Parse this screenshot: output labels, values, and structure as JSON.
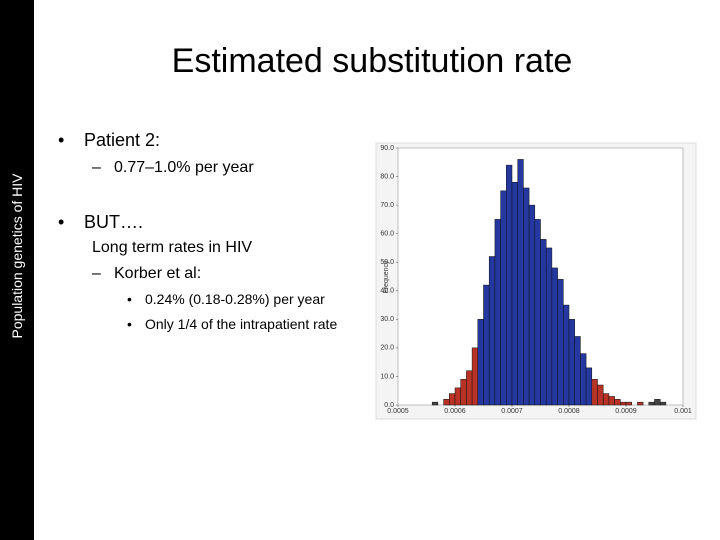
{
  "sidebar": "Population genetics of HIV",
  "title": "Estimated substitution rate",
  "bullets": [
    "Patient 2:",
    "0.77–1.0% per year",
    "BUT….",
    "Long term rates in HIV",
    "Korber et al:",
    "0.24% (0.18-0.28%) per year",
    "Only 1/4 of the intrapatient rate"
  ],
  "chart_data": {
    "type": "histogram",
    "ylabel": "Frequency",
    "bins": [
      0.00056,
      0.00057,
      0.00058,
      0.00059,
      0.0006,
      0.00061,
      0.00062,
      0.00063,
      0.00064,
      0.00065,
      0.00066,
      0.00067,
      0.00068,
      0.00069,
      0.0007,
      0.00071,
      0.00072,
      0.00073,
      0.00074,
      0.00075,
      0.00076,
      0.00077,
      0.00078,
      0.00079,
      0.0008,
      0.00081,
      0.00082,
      0.00083,
      0.00084,
      0.00085,
      0.00086,
      0.00087,
      0.00088,
      0.00089,
      0.0009,
      0.00091,
      0.00092,
      0.00093,
      0.00094,
      0.00095,
      0.00096,
      0.00097
    ],
    "counts": [
      1,
      0,
      2,
      4,
      6,
      9,
      12,
      20,
      30,
      42,
      52,
      65,
      75,
      84,
      78,
      86,
      76,
      70,
      65,
      58,
      55,
      48,
      44,
      35,
      30,
      24,
      18,
      13,
      9,
      7,
      4,
      3,
      2,
      1,
      1,
      0,
      1,
      0,
      1,
      2,
      1
    ],
    "colors": [
      "#444",
      "#b83226",
      "#b83226",
      "#b83226",
      "#b83226",
      "#b83226",
      "#b83226",
      "#b83226",
      "#2438a0",
      "#2438a0",
      "#2438a0",
      "#2438a0",
      "#2438a0",
      "#2438a0",
      "#2438a0",
      "#2438a0",
      "#2438a0",
      "#2438a0",
      "#2438a0",
      "#2438a0",
      "#2438a0",
      "#2438a0",
      "#2438a0",
      "#2438a0",
      "#2438a0",
      "#2438a0",
      "#2438a0",
      "#2438a0",
      "#b83226",
      "#b83226",
      "#b83226",
      "#b83226",
      "#b83226",
      "#b83226",
      "#b83226",
      "#b83226",
      "#b83226",
      "#b83226",
      "#444",
      "#444",
      "#444"
    ],
    "xlim": [
      0.0005,
      0.001
    ],
    "xticks": [
      0.0005,
      0.0006,
      0.0007,
      0.0008,
      0.0009,
      0.001
    ],
    "ylim": [
      0,
      90
    ],
    "yticks": [
      {
        "value": 0,
        "label": "0.0"
      },
      {
        "value": 10,
        "label": "10.0"
      },
      {
        "value": 20,
        "label": "20.0"
      },
      {
        "value": 30,
        "label": "30.0"
      },
      {
        "value": 40,
        "label": "40.0"
      },
      {
        "value": 50,
        "label": "50.0"
      },
      {
        "value": 60,
        "label": "60.0"
      },
      {
        "value": 70,
        "label": "70.0"
      },
      {
        "value": 80,
        "label": "80.0"
      },
      {
        "value": 90,
        "label": "90.0"
      }
    ]
  }
}
